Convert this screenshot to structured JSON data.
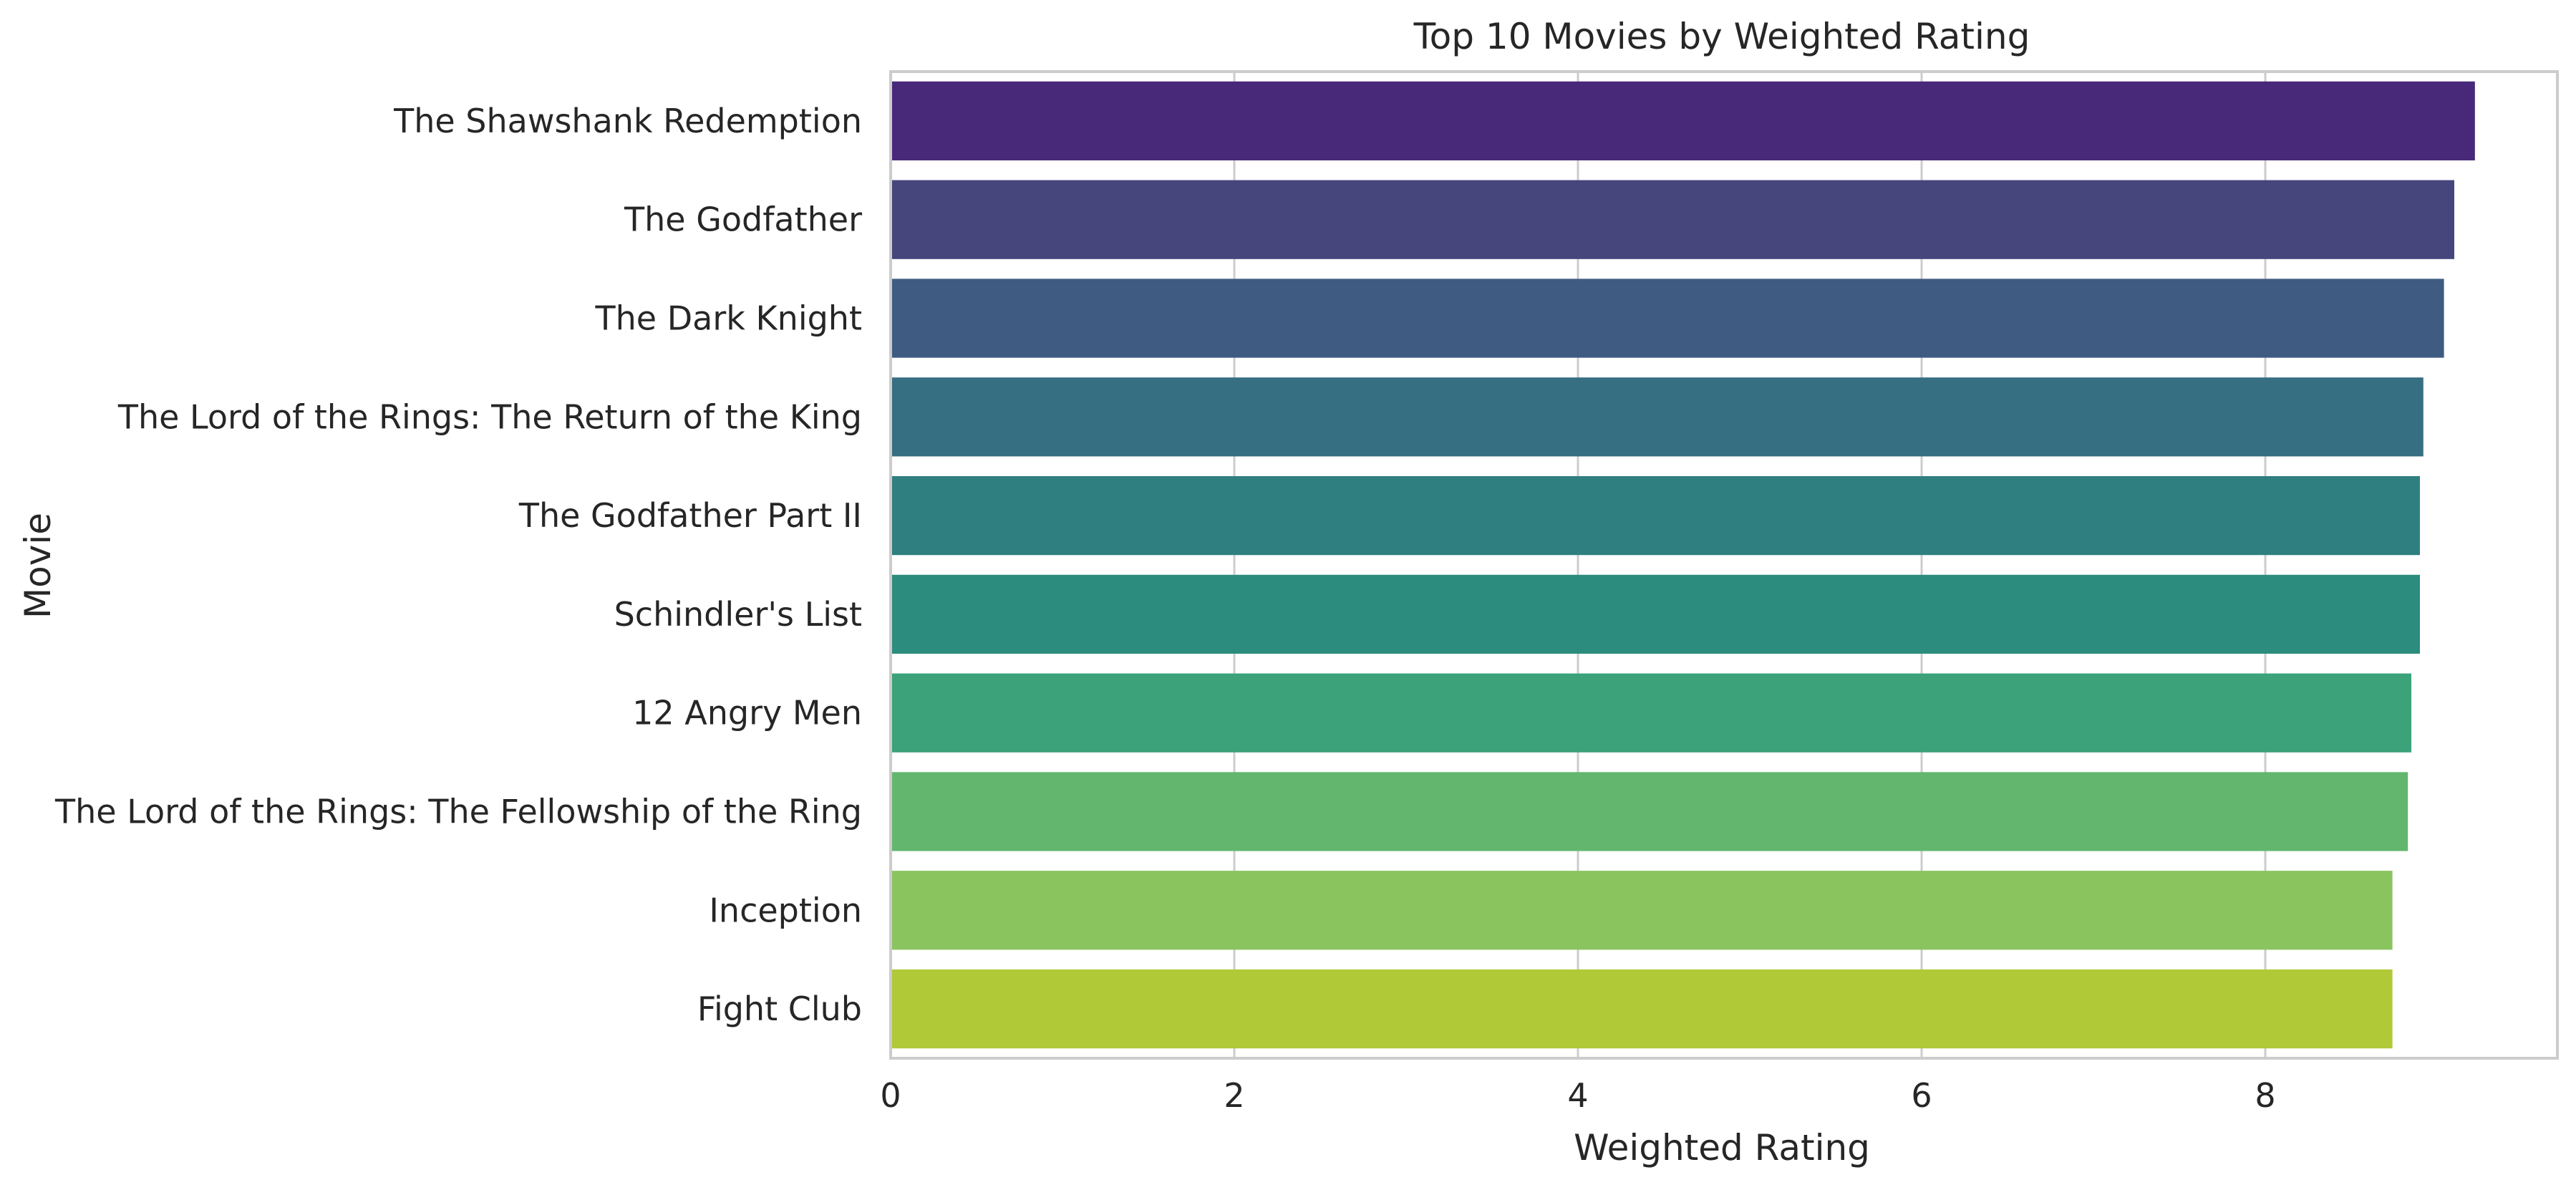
{
  "chart_data": {
    "type": "bar",
    "orientation": "horizontal",
    "title": "Top 10 Movies by Weighted Rating",
    "xlabel": "Weighted Rating",
    "ylabel": "Movie",
    "xlim": [
      0,
      9.7
    ],
    "xticks": [
      0,
      2,
      4,
      6,
      8
    ],
    "grid": "vertical",
    "categories": [
      "The Shawshank Redemption",
      "The Godfather",
      "The Dark Knight",
      "The Lord of the Rings: The Return of the King",
      "The Godfather Part II",
      "Schindler's List",
      "12 Angry Men",
      "The Lord of the Rings: The Fellowship of the Ring",
      "Inception",
      "Fight Club"
    ],
    "values": [
      9.22,
      9.1,
      9.04,
      8.92,
      8.9,
      8.9,
      8.85,
      8.83,
      8.74,
      8.74
    ],
    "colors": [
      "#482878",
      "#46467D",
      "#405B82",
      "#366E82",
      "#2F7F80",
      "#2C8C7E",
      "#3BA27A",
      "#62B66E",
      "#89C45E",
      "#B0C937"
    ]
  }
}
